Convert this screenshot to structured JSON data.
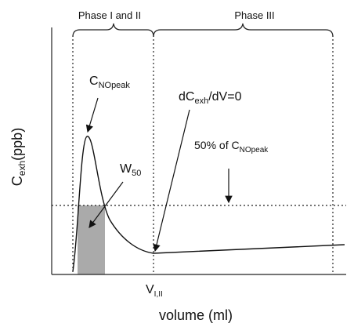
{
  "phases": [
    "Phase I and II",
    "Phase III"
  ],
  "peak_label": {
    "main": "C",
    "sub": "NOpeak"
  },
  "slope_label": {
    "pre": "dC",
    "sub": "exh",
    "post": "/dV=0"
  },
  "half_label": {
    "pre": "50% of C",
    "sub": "NOpeak"
  },
  "width_label": {
    "main": "W",
    "sub": "50"
  },
  "y_axis_label": {
    "main": "C",
    "sub": "exh",
    "post": "(ppb)"
  },
  "x_marker": {
    "main": "V",
    "sub": "I,II"
  },
  "x_axis_label": "volume (ml)"
}
